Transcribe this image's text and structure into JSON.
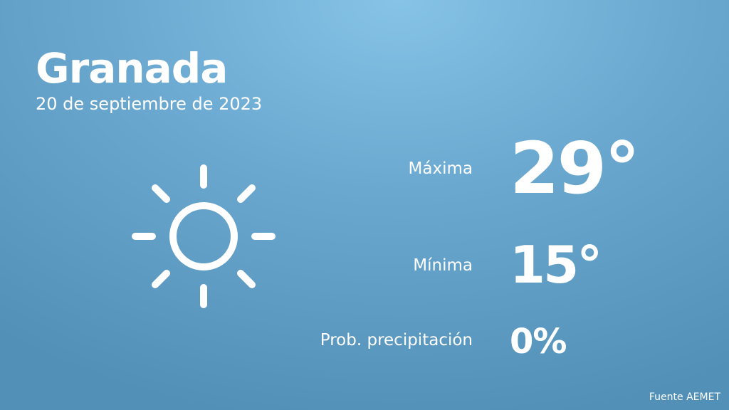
{
  "city": "Granada",
  "date": "20 de septiembre de 2023",
  "weather_icon": "sun-icon",
  "max": {
    "label": "Máxima",
    "value": "29°"
  },
  "min": {
    "label": "Mínima",
    "value": "15°"
  },
  "precip": {
    "label": "Prob. precipitación",
    "value": "0%"
  },
  "source": "Fuente AEMET"
}
